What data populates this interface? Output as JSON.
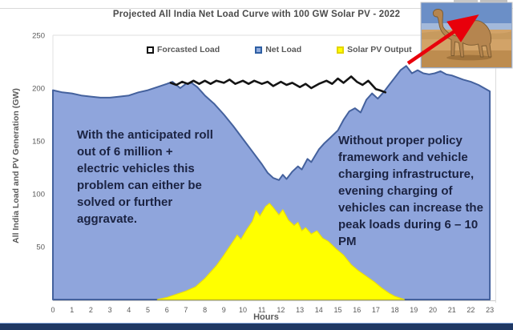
{
  "page": {
    "background": "#ffffff",
    "bottom_bar_color": "#1f3864"
  },
  "chart": {
    "title": "Projected All India Net Load Curve with 100 GW Solar PV - 2022",
    "xlabel": "Hours",
    "ylabel": "All India Load and PV Generation (GW)"
  },
  "legend": {
    "items": [
      {
        "label": "Forcasted Load",
        "swatch_fill": "#ffffff",
        "swatch_border": "#111111"
      },
      {
        "label": "Net Load",
        "swatch_fill": "#8faadc",
        "swatch_border": "#2e5fa3"
      },
      {
        "label": "Solar PV Output",
        "swatch_fill": "#ffff00",
        "swatch_border": "#e3d400"
      }
    ]
  },
  "annotations": {
    "left": "With the anticipated roll\nout of 6 million +\nelectric vehicles this\nproblem can either be\nsolved or further\naggravate.",
    "right": "Without proper policy\nframework and vehicle\ncharging infrastructure,\nevening charging of\nvehicles can increase the\npeak loads during 6 – 10\nPM"
  },
  "camel_image": {
    "alt": "camel standing in desert (curve looks like a camel)"
  },
  "chart_data": {
    "type": "area",
    "title": "Projected All India Net Load Curve with 100 GW Solar PV - 2022",
    "xlabel": "Hours",
    "ylabel": "All India Load and PV Generation (GW)",
    "xlim": [
      0,
      23
    ],
    "ylim": [
      0,
      250
    ],
    "x_ticks": [
      0,
      1,
      2,
      3,
      4,
      5,
      6,
      7,
      8,
      9,
      10,
      11,
      12,
      13,
      14,
      15,
      16,
      17,
      18,
      19,
      20,
      21,
      22,
      23
    ],
    "y_ticks": [
      250,
      200,
      150,
      100,
      50
    ],
    "grid": "single faint line at 250",
    "legend_position": "top",
    "series": [
      {
        "name": "Net Load",
        "type": "area",
        "fill": "#8fa5dc",
        "stroke": "#44619d",
        "points": [
          [
            0,
            198
          ],
          [
            0.5,
            196
          ],
          [
            1,
            195
          ],
          [
            1.5,
            193
          ],
          [
            2,
            192
          ],
          [
            2.5,
            191
          ],
          [
            3,
            191
          ],
          [
            3.5,
            192
          ],
          [
            4,
            193
          ],
          [
            4.5,
            196
          ],
          [
            5,
            198
          ],
          [
            5.5,
            201
          ],
          [
            6,
            204
          ],
          [
            6.3,
            206
          ],
          [
            6.7,
            200
          ],
          [
            7,
            204
          ],
          [
            7.3,
            205
          ],
          [
            7.6,
            201
          ],
          [
            8,
            193
          ],
          [
            8.5,
            185
          ],
          [
            9,
            175
          ],
          [
            9.5,
            164
          ],
          [
            10,
            152
          ],
          [
            10.5,
            140
          ],
          [
            11,
            128
          ],
          [
            11.3,
            120
          ],
          [
            11.6,
            115
          ],
          [
            11.9,
            113
          ],
          [
            12.1,
            118
          ],
          [
            12.3,
            114
          ],
          [
            12.6,
            121
          ],
          [
            12.9,
            126
          ],
          [
            13.1,
            123
          ],
          [
            13.4,
            133
          ],
          [
            13.6,
            130
          ],
          [
            14,
            142
          ],
          [
            14.3,
            148
          ],
          [
            14.6,
            153
          ],
          [
            15,
            160
          ],
          [
            15.3,
            170
          ],
          [
            15.6,
            178
          ],
          [
            15.9,
            181
          ],
          [
            16.2,
            177
          ],
          [
            16.5,
            189
          ],
          [
            16.8,
            195
          ],
          [
            17.1,
            190
          ],
          [
            17.4,
            196
          ],
          [
            17.7,
            203
          ],
          [
            18,
            210
          ],
          [
            18.3,
            217
          ],
          [
            18.6,
            221
          ],
          [
            18.9,
            214
          ],
          [
            19.2,
            217
          ],
          [
            19.5,
            214
          ],
          [
            19.8,
            213
          ],
          [
            20.1,
            214
          ],
          [
            20.4,
            216
          ],
          [
            20.7,
            213
          ],
          [
            21,
            212
          ],
          [
            21.3,
            210
          ],
          [
            21.6,
            208
          ],
          [
            22,
            206
          ],
          [
            22.4,
            203
          ],
          [
            22.7,
            200
          ],
          [
            23,
            197
          ]
        ]
      },
      {
        "name": "Solar PV Output",
        "type": "area",
        "fill": "#ffff00",
        "stroke": "#ecdf06",
        "points": [
          [
            5.5,
            0
          ],
          [
            6,
            2
          ],
          [
            6.5,
            5
          ],
          [
            7,
            8
          ],
          [
            7.5,
            12
          ],
          [
            8,
            20
          ],
          [
            8.3,
            26
          ],
          [
            8.6,
            32
          ],
          [
            9,
            42
          ],
          [
            9.3,
            50
          ],
          [
            9.6,
            58
          ],
          [
            9.7,
            61
          ],
          [
            9.9,
            57
          ],
          [
            10.2,
            66
          ],
          [
            10.5,
            74
          ],
          [
            10.7,
            84
          ],
          [
            10.9,
            79
          ],
          [
            11.2,
            88
          ],
          [
            11.4,
            91
          ],
          [
            11.6,
            87
          ],
          [
            11.9,
            80
          ],
          [
            12.1,
            85
          ],
          [
            12.4,
            75
          ],
          [
            12.7,
            70
          ],
          [
            12.9,
            73
          ],
          [
            13.1,
            65
          ],
          [
            13.3,
            68
          ],
          [
            13.6,
            62
          ],
          [
            13.9,
            65
          ],
          [
            14.2,
            58
          ],
          [
            14.5,
            55
          ],
          [
            14.9,
            48
          ],
          [
            15.3,
            42
          ],
          [
            15.7,
            33
          ],
          [
            16.1,
            27
          ],
          [
            16.5,
            22
          ],
          [
            16.9,
            17
          ],
          [
            17.3,
            11
          ],
          [
            17.7,
            6
          ],
          [
            18,
            3
          ],
          [
            18.5,
            0
          ]
        ]
      },
      {
        "name": "Forcasted Load",
        "type": "line",
        "stroke": "#141414",
        "points": [
          [
            6.2,
            205
          ],
          [
            6.5,
            203
          ],
          [
            6.8,
            206
          ],
          [
            7.1,
            204
          ],
          [
            7.4,
            207
          ],
          [
            7.7,
            204
          ],
          [
            8,
            207
          ],
          [
            8.3,
            204
          ],
          [
            8.6,
            207
          ],
          [
            9,
            205
          ],
          [
            9.3,
            208
          ],
          [
            9.6,
            204
          ],
          [
            10,
            207
          ],
          [
            10.3,
            204
          ],
          [
            10.6,
            207
          ],
          [
            11,
            204
          ],
          [
            11.3,
            206
          ],
          [
            11.6,
            202
          ],
          [
            12,
            206
          ],
          [
            12.3,
            203
          ],
          [
            12.6,
            205
          ],
          [
            13,
            201
          ],
          [
            13.3,
            204
          ],
          [
            13.6,
            200
          ],
          [
            14,
            204
          ],
          [
            14.4,
            207
          ],
          [
            14.7,
            204
          ],
          [
            15,
            209
          ],
          [
            15.3,
            205
          ],
          [
            15.7,
            211
          ],
          [
            16,
            206
          ],
          [
            16.3,
            203
          ],
          [
            16.6,
            207
          ],
          [
            17,
            199
          ],
          [
            17.2,
            198
          ],
          [
            17.5,
            196
          ]
        ]
      }
    ]
  }
}
